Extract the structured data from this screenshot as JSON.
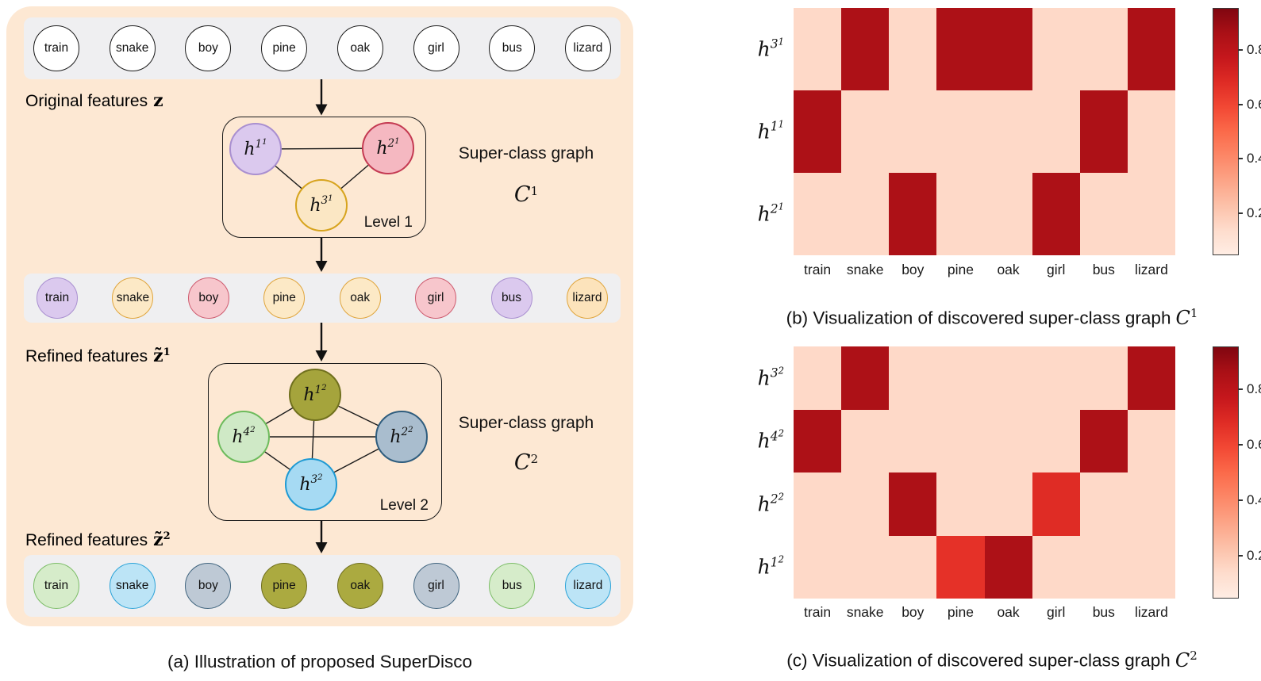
{
  "colors": {
    "panel_background": "#fde8d3",
    "strip_background": "#efeff1",
    "heat_low": "#fdd9c8",
    "heat_high": "#ad1117",
    "heat_mid": "#df2c25"
  },
  "panel_a": {
    "caption": "(a) Illustration of proposed SuperDisco",
    "labels": {
      "original": {
        "text": "Original features",
        "symbol": "z"
      },
      "refined1": {
        "text": "Refined features",
        "symbol": "z̃",
        "sup": "1"
      },
      "refined2": {
        "text": "Refined features",
        "symbol": "z̃",
        "sup": "2"
      }
    },
    "strips": {
      "original": [
        {
          "label": "train",
          "fill": "#ffffff",
          "border": "#1a1a1a"
        },
        {
          "label": "snake",
          "fill": "#ffffff",
          "border": "#1a1a1a"
        },
        {
          "label": "boy",
          "fill": "#ffffff",
          "border": "#1a1a1a"
        },
        {
          "label": "pine",
          "fill": "#ffffff",
          "border": "#1a1a1a"
        },
        {
          "label": "oak",
          "fill": "#ffffff",
          "border": "#1a1a1a"
        },
        {
          "label": "girl",
          "fill": "#ffffff",
          "border": "#1a1a1a"
        },
        {
          "label": "bus",
          "fill": "#ffffff",
          "border": "#1a1a1a"
        },
        {
          "label": "lizard",
          "fill": "#ffffff",
          "border": "#1a1a1a"
        }
      ],
      "refined1": [
        {
          "label": "train",
          "fill": "#dbc9ee",
          "border": "#a98fd0"
        },
        {
          "label": "snake",
          "fill": "#fce9c6",
          "border": "#e0a53c"
        },
        {
          "label": "boy",
          "fill": "#f7c6cc",
          "border": "#ce5a6e"
        },
        {
          "label": "pine",
          "fill": "#fce9c6",
          "border": "#e0a53c"
        },
        {
          "label": "oak",
          "fill": "#fce9c6",
          "border": "#e0a53c"
        },
        {
          "label": "girl",
          "fill": "#f7c6cc",
          "border": "#ce5a6e"
        },
        {
          "label": "bus",
          "fill": "#dbc9ee",
          "border": "#a98fd0"
        },
        {
          "label": "lizard",
          "fill": "#fce3bb",
          "border": "#e0a53c"
        }
      ],
      "refined2": [
        {
          "label": "train",
          "fill": "#d6ecca",
          "border": "#7cbd67"
        },
        {
          "label": "snake",
          "fill": "#bce4f6",
          "border": "#2ba3d8"
        },
        {
          "label": "boy",
          "fill": "#bec9d5",
          "border": "#41657f"
        },
        {
          "label": "pine",
          "fill": "#abaa40",
          "border": "#6f6e1e"
        },
        {
          "label": "oak",
          "fill": "#abaa40",
          "border": "#6f6e1e"
        },
        {
          "label": "girl",
          "fill": "#bec9d5",
          "border": "#41657f"
        },
        {
          "label": "bus",
          "fill": "#d6ecca",
          "border": "#7cbd67"
        },
        {
          "label": "lizard",
          "fill": "#bce4f6",
          "border": "#2ba3d8"
        }
      ]
    },
    "level1": {
      "box_label": "Level 1",
      "side_label": "Super-class graph",
      "side_symbol": "C",
      "side_sup": "1",
      "nodes": [
        {
          "base": "h",
          "sup": "1",
          "supsup": "1",
          "fill": "#dbc9ee",
          "border": "#a98fd0"
        },
        {
          "base": "h",
          "sup": "2",
          "supsup": "1",
          "fill": "#f5b8c1",
          "border": "#c43a52"
        },
        {
          "base": "h",
          "sup": "3",
          "supsup": "1",
          "fill": "#fbe7c4",
          "border": "#d7a41e"
        }
      ]
    },
    "level2": {
      "box_label": "Level 2",
      "side_label": "Super-class graph",
      "side_symbol": "C",
      "side_sup": "2",
      "nodes": [
        {
          "base": "h",
          "sup": "1",
          "supsup": "2",
          "fill": "#a5a43c",
          "border": "#70701d"
        },
        {
          "base": "h",
          "sup": "4",
          "supsup": "2",
          "fill": "#cfe9c6",
          "border": "#6dbb5c"
        },
        {
          "base": "h",
          "sup": "2",
          "supsup": "2",
          "fill": "#a9bdce",
          "border": "#2f5d7e"
        },
        {
          "base": "h",
          "sup": "3",
          "supsup": "2",
          "fill": "#a6daf3",
          "border": "#1f9ad3"
        }
      ]
    }
  },
  "panel_b": {
    "caption": {
      "text": "(b) Visualization of discovered super-class graph",
      "symbol": "C",
      "sup": "1"
    }
  },
  "panel_c": {
    "caption": {
      "text": "(c) Visualization of discovered super-class graph",
      "symbol": "C",
      "sup": "2"
    }
  },
  "chart_data": [
    {
      "type": "heatmap",
      "title": "Visualization of discovered super-class graph C^1",
      "categories": [
        "train",
        "snake",
        "boy",
        "pine",
        "oak",
        "girl",
        "bus",
        "lizard"
      ],
      "rows": [
        {
          "base": "h",
          "sup": "3",
          "supsup": "1",
          "values": [
            0.15,
            0.85,
            0.15,
            0.85,
            0.85,
            0.15,
            0.15,
            0.85
          ]
        },
        {
          "base": "h",
          "sup": "1",
          "supsup": "1",
          "values": [
            0.85,
            0.15,
            0.15,
            0.15,
            0.15,
            0.15,
            0.85,
            0.15
          ]
        },
        {
          "base": "h",
          "sup": "2",
          "supsup": "1",
          "values": [
            0.15,
            0.15,
            0.85,
            0.15,
            0.15,
            0.85,
            0.15,
            0.15
          ]
        }
      ],
      "colormap": "Reds",
      "vmin": 0.05,
      "vmax": 0.95,
      "colorbar_ticks": [
        0.8,
        0.6,
        0.4,
        0.2
      ],
      "legend_position": "right-colorbar",
      "grid": false
    },
    {
      "type": "heatmap",
      "title": "Visualization of discovered super-class graph C^2",
      "categories": [
        "train",
        "snake",
        "boy",
        "pine",
        "oak",
        "girl",
        "bus",
        "lizard"
      ],
      "rows": [
        {
          "base": "h",
          "sup": "3",
          "supsup": "2",
          "values": [
            0.15,
            0.85,
            0.15,
            0.15,
            0.15,
            0.15,
            0.15,
            0.85
          ]
        },
        {
          "base": "h",
          "sup": "4",
          "supsup": "2",
          "values": [
            0.85,
            0.15,
            0.15,
            0.15,
            0.15,
            0.15,
            0.85,
            0.15
          ]
        },
        {
          "base": "h",
          "sup": "2",
          "supsup": "2",
          "values": [
            0.15,
            0.15,
            0.85,
            0.15,
            0.15,
            0.68,
            0.15,
            0.15
          ]
        },
        {
          "base": "h",
          "sup": "1",
          "supsup": "2",
          "values": [
            0.15,
            0.15,
            0.15,
            0.66,
            0.85,
            0.15,
            0.15,
            0.15
          ]
        }
      ],
      "colormap": "Reds",
      "vmin": 0.05,
      "vmax": 0.95,
      "colorbar_ticks": [
        0.8,
        0.6,
        0.4,
        0.2
      ],
      "legend_position": "right-colorbar",
      "grid": false
    }
  ]
}
